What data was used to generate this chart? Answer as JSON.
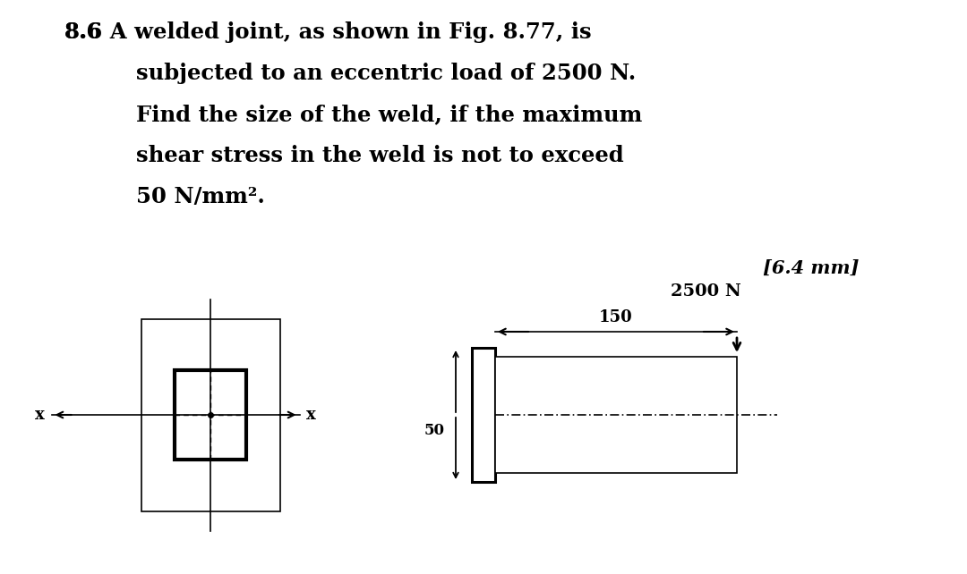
{
  "bg_color": "#ffffff",
  "text_color": "#000000",
  "title_lines": [
    [
      "8.6",
      " A welded joint, as shown in Fig. 8.77, is"
    ],
    [
      "",
      "subjected to an eccentric load of 2500 N."
    ],
    [
      "",
      "Find the size of the weld, if the maximum"
    ],
    [
      "",
      "shear stress in the weld is not to exceed"
    ],
    [
      "",
      "50 N/mm²."
    ]
  ],
  "answer": "[6.4 mm]",
  "load_label": "2500 N",
  "dim_150": "150",
  "x_label": "x",
  "dim_50": "50",
  "lw_thick": 2.2,
  "lw_thin": 1.2
}
